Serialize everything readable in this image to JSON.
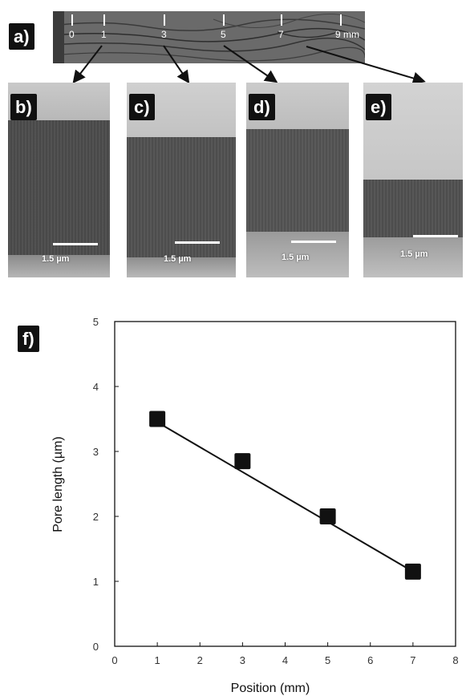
{
  "panels": {
    "a": "a)",
    "b": "b)",
    "c": "c)",
    "d": "d)",
    "e": "e)",
    "f": "f)"
  },
  "strip": {
    "labels": [
      "0",
      "1",
      "3",
      "5",
      "7",
      "9 mm"
    ]
  },
  "scale_bar_text": "1.5 µm",
  "chart_data": {
    "type": "line",
    "xlabel": "Position  (mm)",
    "ylabel": "Pore length (µm)",
    "xlim": [
      0,
      8
    ],
    "ylim": [
      0,
      5
    ],
    "xticks": [
      "0",
      "1",
      "2",
      "3",
      "4",
      "5",
      "6",
      "7",
      "8"
    ],
    "yticks": [
      "0",
      "1",
      "2",
      "3",
      "4",
      "5"
    ],
    "series": [
      {
        "x": [
          1,
          3,
          5,
          7
        ],
        "y": [
          3.5,
          2.85,
          2.0,
          1.15
        ],
        "marker": "square",
        "color": "#111111"
      }
    ],
    "fit_line": {
      "x": [
        1,
        7
      ],
      "y": [
        3.45,
        1.15
      ]
    },
    "grid": false,
    "legend": "none"
  }
}
